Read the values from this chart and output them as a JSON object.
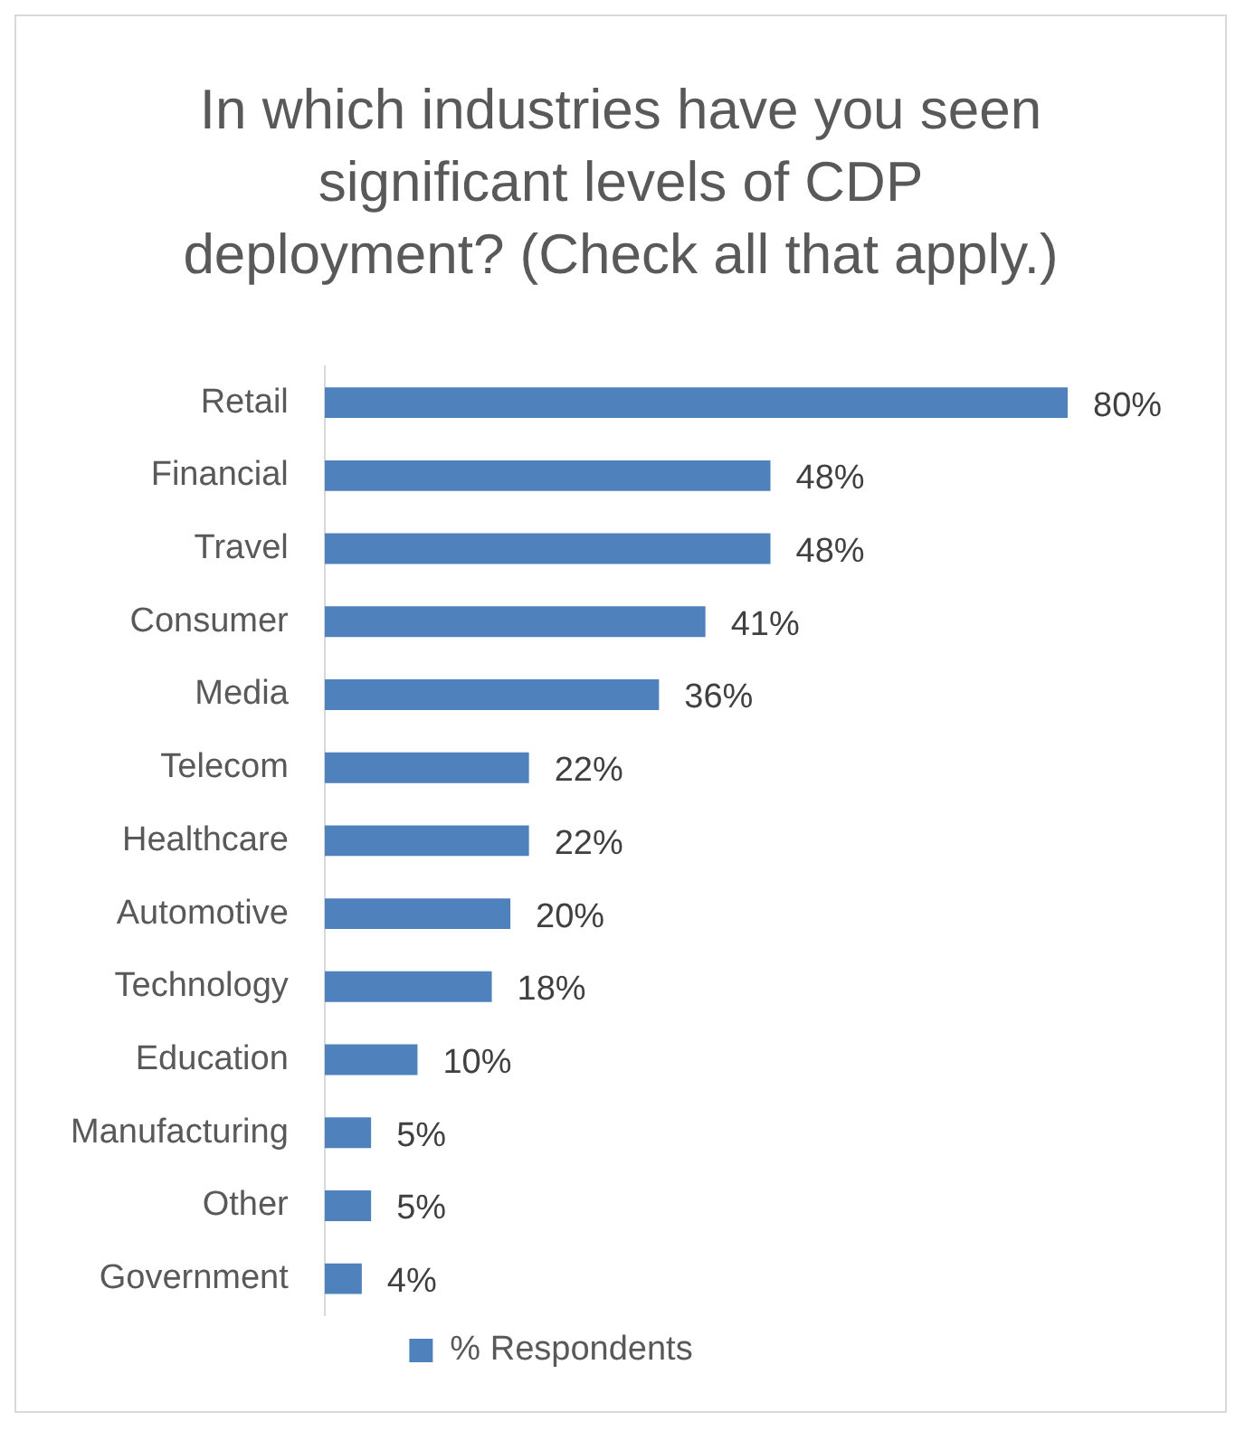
{
  "chart_data": {
    "type": "bar",
    "orientation": "horizontal",
    "title": "In which industries have you seen significant levels of CDP deployment? (Check all that apply.)",
    "categories": [
      "Retail",
      "Financial",
      "Travel",
      "Consumer",
      "Media",
      "Telecom",
      "Healthcare",
      "Automotive",
      "Technology",
      "Education",
      "Manufacturing",
      "Other",
      "Government"
    ],
    "series": [
      {
        "name": "% Respondents",
        "color": "#4f81bd",
        "values": [
          80,
          48,
          48,
          41,
          36,
          22,
          22,
          20,
          18,
          10,
          5,
          5,
          4
        ],
        "value_labels": [
          "80%",
          "48%",
          "48%",
          "41%",
          "36%",
          "22%",
          "22%",
          "20%",
          "18%",
          "10%",
          "5%",
          "5%",
          "4%"
        ]
      }
    ],
    "legend": "bottom"
  }
}
